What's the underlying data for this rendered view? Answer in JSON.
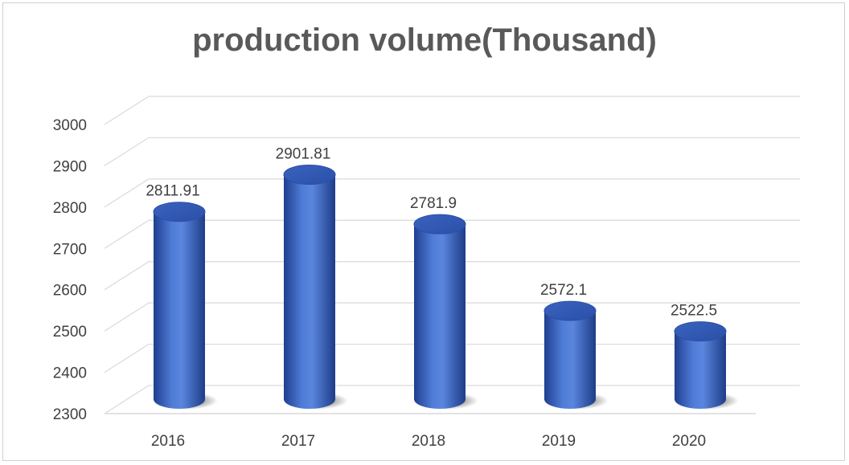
{
  "chart_data": {
    "type": "bar",
    "title": "production volume(Thousand)",
    "categories": [
      "2016",
      "2017",
      "2018",
      "2019",
      "2020"
    ],
    "values": [
      2811.91,
      2901.81,
      2781.9,
      2572.1,
      2522.5
    ],
    "data_labels": [
      "2811.91",
      "2901.81",
      "2781.9",
      "2572.1",
      "2522.5"
    ],
    "y_ticks": [
      "2300",
      "2400",
      "2500",
      "2600",
      "2700",
      "2800",
      "2900",
      "3000"
    ],
    "ylim": [
      2300,
      3000
    ],
    "xlabel": "",
    "ylabel": "",
    "grid": true,
    "legend": "none",
    "style": "3d-cylinder",
    "colors": {
      "bar": "#4472C4",
      "bar_dark": "#1F3F8F",
      "bar_light": "#6F97E6",
      "grid": "#d9d9d9",
      "text": "#404040",
      "title": "#595959"
    }
  }
}
